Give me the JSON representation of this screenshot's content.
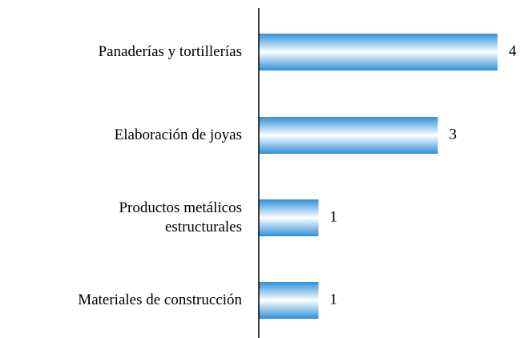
{
  "chart_data": {
    "type": "barh",
    "categories": [
      "Panaderías y tortillerías",
      "Elaboración de joyas",
      "Productos metálicos\nestructurales",
      "Materiales de construcción"
    ],
    "values": [
      4,
      3,
      1,
      1
    ],
    "color": "#2f8fd8",
    "xlim": [
      0,
      4
    ]
  }
}
